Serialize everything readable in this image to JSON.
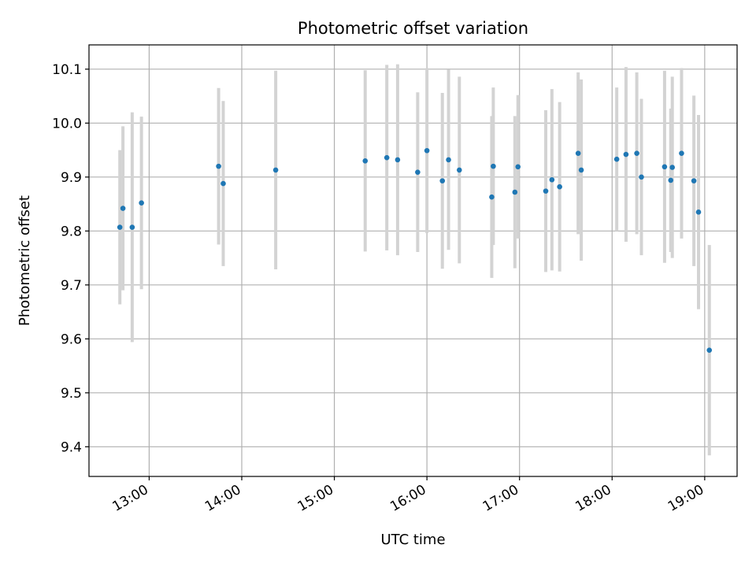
{
  "chart_data": {
    "type": "scatter",
    "title": "Photometric offset variation",
    "xlabel": "UTC time",
    "ylabel": "Photometric offset",
    "x_tick_labels": [
      "13:00",
      "14:00",
      "15:00",
      "16:00",
      "17:00",
      "18:00",
      "19:00"
    ],
    "y_tick_labels": [
      "9.4",
      "9.5",
      "9.6",
      "9.7",
      "9.8",
      "9.9",
      "10.0",
      "10.1"
    ],
    "y_ticks": [
      9.4,
      9.5,
      9.6,
      9.7,
      9.8,
      9.9,
      10.0,
      10.1
    ],
    "xlim": [
      "12:21",
      "19:21"
    ],
    "ylim": [
      9.345,
      10.145
    ],
    "grid": true,
    "point_color": "#1f77b4",
    "errorbar_color": "#d3d3d3",
    "points": [
      {
        "x": "12:41",
        "y": 9.807,
        "yerr": 0.143
      },
      {
        "x": "12:43",
        "y": 9.842,
        "yerr": 0.152
      },
      {
        "x": "12:49",
        "y": 9.807,
        "yerr": 0.213
      },
      {
        "x": "12:55",
        "y": 9.852,
        "yerr": 0.16
      },
      {
        "x": "13:45",
        "y": 9.92,
        "yerr": 0.145
      },
      {
        "x": "13:48",
        "y": 9.888,
        "yerr": 0.153
      },
      {
        "x": "14:22",
        "y": 9.913,
        "yerr": 0.184
      },
      {
        "x": "15:20",
        "y": 9.93,
        "yerr": 0.168
      },
      {
        "x": "15:34",
        "y": 9.936,
        "yerr": 0.172
      },
      {
        "x": "15:41",
        "y": 9.932,
        "yerr": 0.177
      },
      {
        "x": "15:54",
        "y": 9.909,
        "yerr": 0.148
      },
      {
        "x": "16:00",
        "y": 9.949,
        "yerr": 0.153
      },
      {
        "x": "16:10",
        "y": 9.893,
        "yerr": 0.163
      },
      {
        "x": "16:14",
        "y": 9.932,
        "yerr": 0.167
      },
      {
        "x": "16:21",
        "y": 9.913,
        "yerr": 0.173
      },
      {
        "x": "16:42",
        "y": 9.863,
        "yerr": 0.15
      },
      {
        "x": "16:43",
        "y": 9.92,
        "yerr": 0.146
      },
      {
        "x": "16:57",
        "y": 9.872,
        "yerr": 0.141
      },
      {
        "x": "16:59",
        "y": 9.919,
        "yerr": 0.133
      },
      {
        "x": "17:17",
        "y": 9.874,
        "yerr": 0.15
      },
      {
        "x": "17:21",
        "y": 9.895,
        "yerr": 0.168
      },
      {
        "x": "17:26",
        "y": 9.882,
        "yerr": 0.157
      },
      {
        "x": "17:38",
        "y": 9.944,
        "yerr": 0.15
      },
      {
        "x": "17:40",
        "y": 9.913,
        "yerr": 0.168
      },
      {
        "x": "18:03",
        "y": 9.933,
        "yerr": 0.133
      },
      {
        "x": "18:09",
        "y": 9.942,
        "yerr": 0.162
      },
      {
        "x": "18:16",
        "y": 9.944,
        "yerr": 0.15
      },
      {
        "x": "18:19",
        "y": 9.9,
        "yerr": 0.145
      },
      {
        "x": "18:34",
        "y": 9.919,
        "yerr": 0.178
      },
      {
        "x": "18:38",
        "y": 9.894,
        "yerr": 0.133
      },
      {
        "x": "18:39",
        "y": 9.918,
        "yerr": 0.168
      },
      {
        "x": "18:45",
        "y": 9.944,
        "yerr": 0.158
      },
      {
        "x": "18:53",
        "y": 9.893,
        "yerr": 0.158
      },
      {
        "x": "18:56",
        "y": 9.835,
        "yerr": 0.18
      },
      {
        "x": "19:03",
        "y": 9.579,
        "yerr": 0.195
      }
    ]
  }
}
